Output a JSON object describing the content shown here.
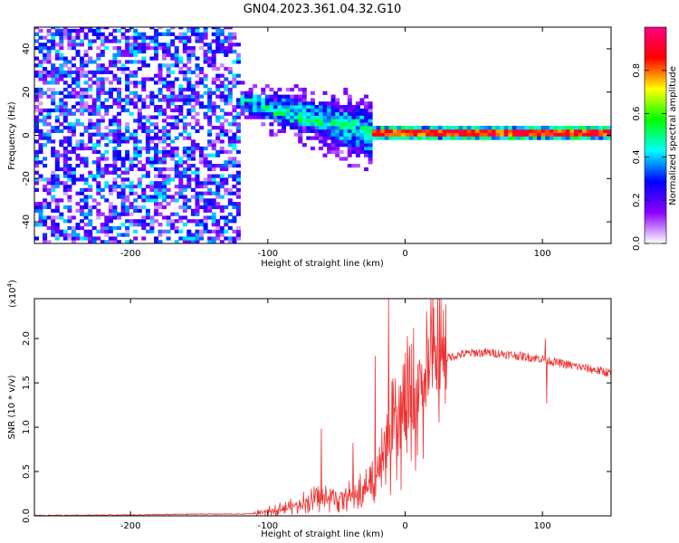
{
  "figure": {
    "title": "GN04.2023.361.04.32.G10"
  },
  "chart_data": [
    {
      "type": "heatmap",
      "xlabel": "Height of straight line (km)",
      "ylabel": "Frequency (Hz)",
      "xlim": [
        -270,
        150
      ],
      "ylim": [
        -50,
        50
      ],
      "xticks": [
        -200,
        -100,
        0,
        100
      ],
      "yticks": [
        -40,
        -20,
        0,
        20,
        40
      ],
      "grid": false,
      "colorbar": {
        "label": "Normalized spectral amplitude",
        "range": [
          0,
          1
        ],
        "ticks": [
          0.0,
          0.2,
          0.4,
          0.6,
          0.8
        ],
        "colormap": [
          "#ffffff",
          "#8b00ff",
          "#0000ff",
          "#00ffff",
          "#00ff00",
          "#ffff00",
          "#ff0000",
          "#ff0080"
        ]
      },
      "regions": [
        {
          "x": [
            -270,
            -120
          ],
          "freq_band": [
            -50,
            50
          ],
          "amplitude": "0.1-0.4 (noise)"
        },
        {
          "x": [
            -120,
            -25
          ],
          "freq_center": [
            15,
            0
          ],
          "freq_spread": [
            5,
            12
          ],
          "amplitude": "0.3-0.6"
        },
        {
          "x": [
            -25,
            150
          ],
          "freq_center": [
            0,
            0
          ],
          "freq_width": 2,
          "amplitude": "0.7-0.95"
        }
      ]
    },
    {
      "type": "line",
      "xlabel": "Height of straight line (km)",
      "ylabel": "SNR (10 * v/v)",
      "scale_label": "(x10",
      "scale_exp": "4",
      "scale_close": ")",
      "xlim": [
        -270,
        150
      ],
      "ylim": [
        0,
        2.45
      ],
      "xticks": [
        -200,
        -100,
        0,
        100
      ],
      "yticks": [
        0.0,
        0.5,
        1.0,
        1.5,
        2.0
      ],
      "grid": false,
      "series": [
        {
          "color": "#ee3333",
          "x": [
            -270,
            -200,
            -150,
            -120,
            -105,
            -100,
            -90,
            -80,
            -70,
            -60,
            -50,
            -40,
            -30,
            -25,
            -20,
            -15,
            -10,
            -5,
            0,
            5,
            10,
            15,
            20,
            25,
            30,
            40,
            50,
            60,
            70,
            80,
            90,
            100,
            110,
            120,
            130,
            140,
            150
          ],
          "y": [
            0.005,
            0.01,
            0.02,
            0.02,
            0.03,
            0.05,
            0.08,
            0.12,
            0.17,
            0.2,
            0.2,
            0.22,
            0.28,
            0.36,
            0.5,
            0.65,
            0.85,
            1.0,
            1.1,
            1.25,
            1.42,
            1.58,
            1.7,
            1.75,
            1.78,
            1.82,
            1.84,
            1.84,
            1.83,
            1.81,
            1.79,
            1.77,
            1.73,
            1.7,
            1.67,
            1.64,
            1.61
          ],
          "spikes": [
            {
              "x": -61,
              "y": 0.98
            },
            {
              "x": -38,
              "y": 0.82
            },
            {
              "x": -22,
              "y": 1.8
            },
            {
              "x": -12,
              "y": 2.45
            },
            {
              "x": 28,
              "y": 2.32
            },
            {
              "x": 102,
              "y": 2.0
            },
            {
              "x": 103,
              "y": 1.27
            }
          ]
        }
      ]
    }
  ]
}
